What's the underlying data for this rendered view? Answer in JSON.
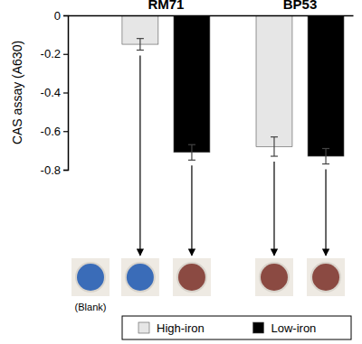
{
  "chart_data": {
    "type": "bar",
    "y_label": "CAS assay (A630)",
    "categories": [
      "RM71",
      "BP53"
    ],
    "series": [
      {
        "name": "High-iron",
        "color": "#e6e6e6",
        "values": [
          -0.15,
          -0.68
        ],
        "errors": [
          0.03,
          0.05
        ]
      },
      {
        "name": "Low-iron",
        "color": "#000000",
        "values": [
          -0.71,
          -0.73
        ],
        "errors": [
          0.04,
          0.04
        ]
      }
    ],
    "ylim": [
      -0.8,
      0
    ],
    "yticks": [
      0,
      -0.2,
      -0.4,
      -0.6,
      -0.8
    ],
    "grid": false,
    "legend": "bottom",
    "annotations": [
      "(Blank)"
    ]
  }
}
